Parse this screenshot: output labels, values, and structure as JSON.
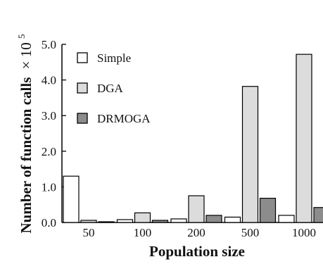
{
  "chart_data": {
    "type": "bar",
    "title": "",
    "xlabel": "Population size",
    "ylabel": "Number of function calls",
    "ylabel_multiplier": "× 10",
    "ylabel_exponent": "5",
    "ylim": [
      0,
      5.0
    ],
    "yticks": [
      "0.0",
      "1.0",
      "2.0",
      "3.0",
      "4.0",
      "5.0"
    ],
    "categories": [
      "50",
      "100",
      "200",
      "500",
      "1000"
    ],
    "legend_position": "top-left",
    "grid": false,
    "series": [
      {
        "name": "Simple",
        "color": "#ffffff",
        "values": [
          1.3,
          0.08,
          0.1,
          0.15,
          0.2
        ]
      },
      {
        "name": "DGA",
        "color": "#dcdcdc",
        "values": [
          0.06,
          0.27,
          0.75,
          3.82,
          4.72
        ]
      },
      {
        "name": "DRMOGA",
        "color": "#8c8c8c",
        "values": [
          0.02,
          0.06,
          0.2,
          0.68,
          0.42
        ]
      }
    ]
  }
}
